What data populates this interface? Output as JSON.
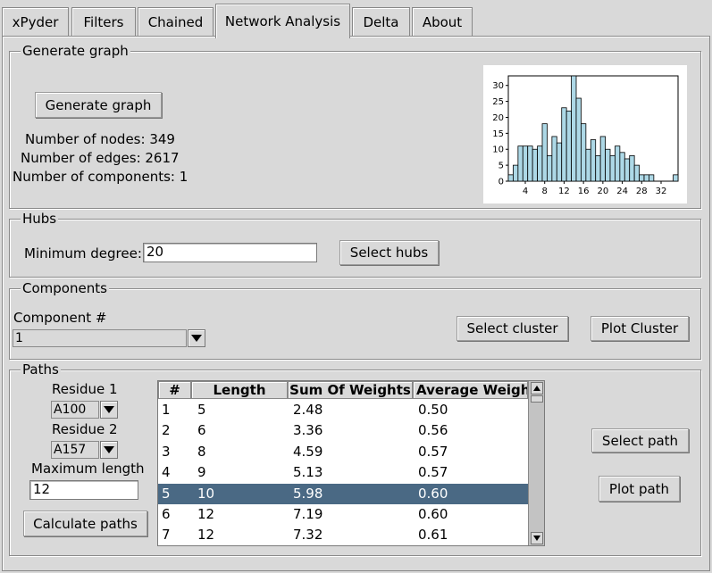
{
  "tabs": [
    {
      "label": "xPyder"
    },
    {
      "label": "Filters"
    },
    {
      "label": "Chained"
    },
    {
      "label": "Network Analysis"
    },
    {
      "label": "Delta"
    },
    {
      "label": "About"
    }
  ],
  "generate_graph": {
    "legend": "Generate graph",
    "button_label": "Generate graph",
    "nodes_text": "Number of nodes: 349",
    "edges_text": "Number of edges: 2617",
    "components_text": "Number of components: 1"
  },
  "chart_data": {
    "type": "bar",
    "x_start": 1,
    "x_step": 1,
    "values": [
      2,
      5,
      11,
      11,
      11,
      10,
      11,
      18,
      8,
      14,
      12,
      23,
      22,
      33,
      26,
      18,
      10,
      13,
      8,
      14,
      10,
      8,
      11,
      9,
      7,
      8,
      5,
      2,
      2,
      2,
      0,
      0,
      0,
      0,
      2
    ],
    "xticks": [
      "4",
      "8",
      "12",
      "16",
      "20",
      "24",
      "28",
      "32"
    ],
    "yticks": [
      "0",
      "5",
      "10",
      "15",
      "20",
      "25",
      "30"
    ],
    "ylim": [
      0,
      33
    ],
    "bar_color": "#add8e6"
  },
  "hubs": {
    "legend": "Hubs",
    "min_degree_label": "Minimum degree:",
    "min_degree_value": "20",
    "select_hubs_label": "Select hubs"
  },
  "components": {
    "legend": "Components",
    "component_label": "Component #",
    "component_value": "1",
    "select_cluster_label": "Select cluster",
    "plot_cluster_label": "Plot Cluster"
  },
  "paths": {
    "legend": "Paths",
    "residue1_label": "Residue 1",
    "residue1_value": "A100",
    "residue2_label": "Residue 2",
    "residue2_value": "A157",
    "max_length_label": "Maximum length",
    "max_length_value": "12",
    "calculate_label": "Calculate paths",
    "select_path_label": "Select path",
    "plot_path_label": "Plot path",
    "columns": [
      "#",
      "Length",
      "Sum Of Weights",
      "Average Weigh"
    ],
    "rows": [
      [
        "1",
        "5",
        "2.48",
        "0.50"
      ],
      [
        "2",
        "6",
        "3.36",
        "0.56"
      ],
      [
        "3",
        "8",
        "4.59",
        "0.57"
      ],
      [
        "4",
        "9",
        "5.13",
        "0.57"
      ],
      [
        "5",
        "10",
        "5.98",
        "0.60"
      ],
      [
        "6",
        "12",
        "7.19",
        "0.60"
      ],
      [
        "7",
        "12",
        "7.32",
        "0.61"
      ]
    ],
    "selected_row": 4
  }
}
